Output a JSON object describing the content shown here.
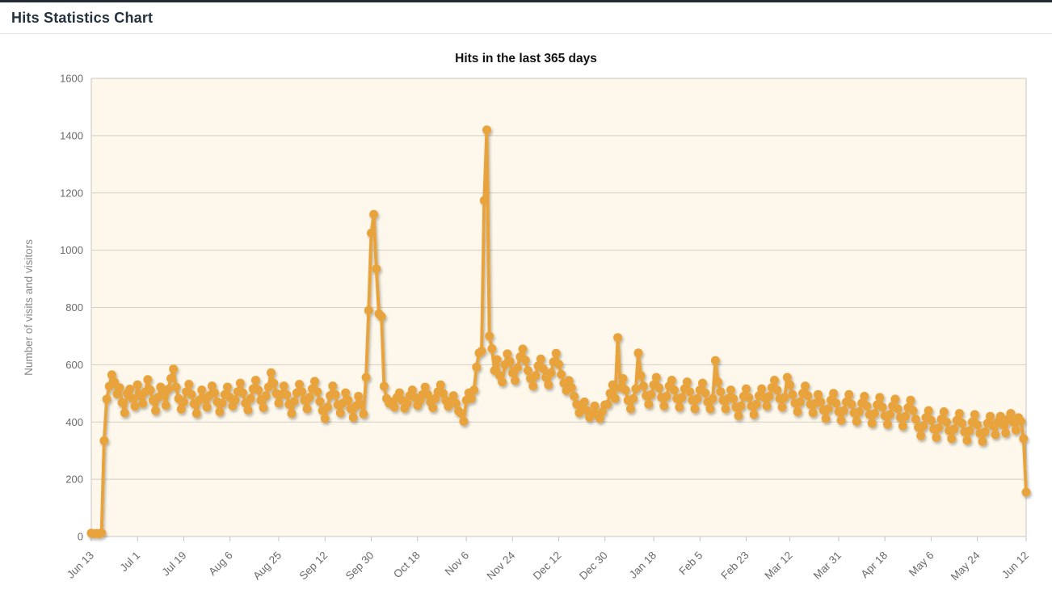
{
  "header": {
    "title": "Hits Statistics Chart"
  },
  "chart_data": {
    "type": "line",
    "title": "Hits in the last 365 days",
    "ylabel": "Number of visits and visitors",
    "legend": "none",
    "grid": "horizontal",
    "n_days": 365,
    "y_axis": {
      "min": 0,
      "max": 1600,
      "tick_interval": 200,
      "ticks": [
        0,
        200,
        400,
        600,
        800,
        1000,
        1200,
        1400,
        1600
      ]
    },
    "x_axis": {
      "tick_labels": [
        "Jun 13",
        "Jul 1",
        "Jul 19",
        "Aug 6",
        "Aug 25",
        "Sep 12",
        "Sep 30",
        "Oct 18",
        "Nov 6",
        "Nov 24",
        "Dec 12",
        "Dec 30",
        "Jan 18",
        "Feb 5",
        "Feb 23",
        "Mar 12",
        "Mar 31",
        "Apr 18",
        "May 6",
        "May 24",
        "Jun 12"
      ],
      "tick_day_indices": [
        0,
        18,
        36,
        54,
        73,
        91,
        109,
        127,
        146,
        164,
        182,
        200,
        219,
        237,
        255,
        272,
        291,
        309,
        327,
        345,
        364
      ],
      "label_rotation_deg": -45
    },
    "series": [
      {
        "values": [
          12,
          10,
          11,
          9,
          13,
          335,
          480,
          525,
          565,
          540,
          498,
          520,
          468,
          432,
          500,
          515,
          482,
          455,
          530,
          492,
          465,
          505,
          548,
          512,
          476,
          440,
          486,
          522,
          495,
          458,
          515,
          552,
          585,
          522,
          482,
          445,
          470,
          506,
          532,
          496,
          464,
          430,
          476,
          512,
          482,
          452,
          492,
          526,
          502,
          470,
          436,
          466,
          496,
          522,
          486,
          456,
          476,
          506,
          536,
          502,
          466,
          442,
          482,
          516,
          546,
          512,
          476,
          450,
          492,
          522,
          572,
          536,
          500,
          466,
          496,
          526,
          496,
          462,
          430,
          472,
          502,
          532,
          506,
          476,
          446,
          486,
          516,
          542,
          506,
          472,
          440,
          412,
          452,
          492,
          526,
          496,
          460,
          432,
          466,
          502,
          476,
          446,
          416,
          456,
          490,
          462,
          428,
          556,
          790,
          1060,
          1125,
          935,
          778,
          768,
          525,
          482,
          465,
          470,
          452,
          486,
          502,
          476,
          448,
          466,
          492,
          512,
          486,
          458,
          476,
          496,
          522,
          496,
          470,
          450,
          482,
          506,
          530,
          500,
          476,
          455,
          470,
          492,
          465,
          438,
          430,
          402,
          476,
          502,
          482,
          512,
          592,
          641,
          648,
          1174,
          1420,
          700,
          656,
          580,
          618,
          562,
          540,
          600,
          638,
          612,
          572,
          545,
          590,
          628,
          655,
          616,
          580,
          552,
          526,
          562,
          596,
          620,
          586,
          556,
          530,
          572,
          610,
          640,
          602,
          566,
          536,
          510,
          545,
          520,
          490,
          462,
          432,
          446,
          470,
          440,
          416,
          430,
          456,
          425,
          412,
          436,
          460,
          462,
          500,
          530,
          482,
          695,
          520,
          552,
          512,
          476,
          446,
          482,
          516,
          641,
          562,
          526,
          492,
          462,
          496,
          530,
          556,
          520,
          486,
          456,
          490,
          526,
          546,
          512,
          482,
          452,
          486,
          516,
          540,
          506,
          476,
          446,
          482,
          512,
          536,
          502,
          470,
          446,
          482,
          615,
          540,
          506,
          476,
          446,
          482,
          512,
          482,
          452,
          422,
          456,
          490,
          516,
          486,
          456,
          426,
          462,
          492,
          516,
          486,
          456,
          490,
          520,
          546,
          512,
          482,
          452,
          486,
          556,
          530,
          496,
          466,
          436,
          470,
          500,
          526,
          492,
          462,
          432,
          466,
          496,
          470,
          442,
          412,
          446,
          476,
          500,
          466,
          436,
          406,
          440,
          470,
          496,
          462,
          432,
          402,
          436,
          466,
          490,
          456,
          426,
          396,
          430,
          460,
          486,
          452,
          422,
          392,
          426,
          456,
          480,
          446,
          416,
          386,
          420,
          450,
          476,
          440,
          410,
          382,
          352,
          386,
          416,
          440,
          406,
          376,
          346,
          380,
          410,
          436,
          400,
          370,
          342,
          376,
          406,
          430,
          396,
          366,
          336,
          370,
          400,
          426,
          390,
          360,
          332,
          366,
          396,
          420,
          386,
          356,
          400,
          420,
          390,
          362,
          410,
          430,
          400,
          372,
          415,
          402,
          342,
          155
        ]
      }
    ],
    "colors": {
      "point": "#E8A33C",
      "plot_background": "#FDF8EB",
      "plot_border": "#C9C6BD",
      "grid": "#D2CFC7",
      "axis_label": "#6B6B6B",
      "axis_title": "#8A8A8A",
      "title": "#111111"
    },
    "marker": {
      "radius": 5.5,
      "line_width": 4,
      "shadow": true
    }
  }
}
